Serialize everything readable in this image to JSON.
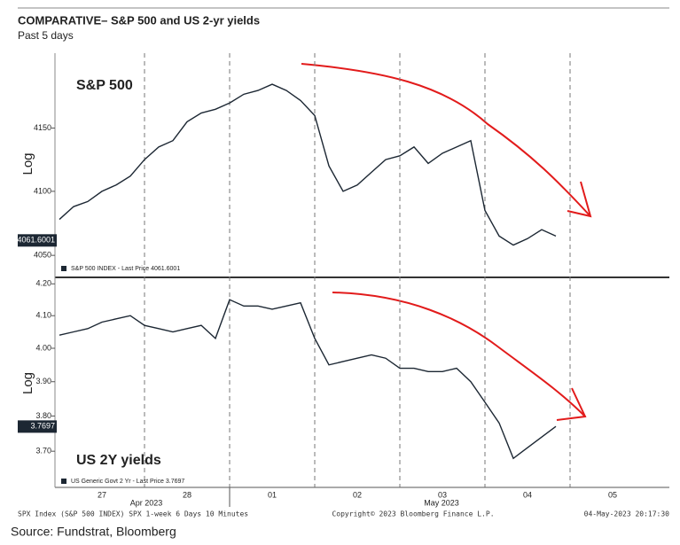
{
  "header": {
    "title": "COMPARATIVE– S&P 500 and US 2-yr yields",
    "subtitle": "Past 5 days"
  },
  "x_axis": {
    "categories": [
      null,
      null,
      null,
      "27",
      null,
      null,
      null,
      null,
      null,
      "28",
      null,
      null,
      null,
      null,
      null,
      "01",
      null,
      null,
      null,
      null,
      null,
      "02",
      null,
      null,
      null,
      null,
      null,
      "03",
      null,
      null,
      null,
      null,
      null,
      "04",
      null,
      null,
      null,
      null,
      null,
      "05",
      null,
      null
    ],
    "months": [
      "Apr 2023",
      "May 2023"
    ]
  },
  "chart_data": [
    {
      "type": "line",
      "annotation": "S&P 500",
      "axis_label": "Log",
      "log": true,
      "legend": "S&P 500 INDEX - Last Price 4061.6001",
      "last_price": 4061.6001,
      "series": [
        {
          "name": "S&P 500 INDEX",
          "color": "#1c2733",
          "values": [
            4078,
            4088,
            4092,
            4100,
            4105,
            4112,
            4125,
            4135,
            4140,
            4155,
            4162,
            4165,
            4170,
            4177,
            4180,
            4185,
            4180,
            4172,
            4160,
            4120,
            4100,
            4105,
            4115,
            4125,
            4128,
            4135,
            4122,
            4130,
            4135,
            4140,
            4085,
            4065,
            4058,
            4063,
            4070,
            4065,
            null,
            null,
            null,
            null,
            null,
            null
          ]
        }
      ],
      "ylim": [
        4035,
        4210
      ],
      "yticks": [
        4050,
        4100,
        4150
      ]
    },
    {
      "type": "line",
      "annotation": "US 2Y yields",
      "axis_label": "Log",
      "log": true,
      "legend": "US Generic Govt 2 Yr - Last Price 3.7697",
      "last_price": 3.7697,
      "series": [
        {
          "name": "US Generic Govt 2 Yr",
          "color": "#1c2733",
          "values": [
            4.04,
            4.05,
            4.06,
            4.08,
            4.09,
            4.1,
            4.07,
            4.06,
            4.05,
            4.06,
            4.07,
            4.03,
            4.15,
            4.13,
            4.13,
            4.12,
            4.13,
            4.14,
            4.03,
            3.95,
            3.96,
            3.97,
            3.98,
            3.97,
            3.94,
            3.94,
            3.93,
            3.93,
            3.94,
            3.9,
            3.84,
            3.78,
            3.68,
            3.71,
            3.74,
            3.77,
            null,
            null,
            null,
            null,
            null,
            null
          ]
        }
      ],
      "ylim": [
        3.6,
        4.215
      ],
      "yticks": [
        {
          "value": 3.7,
          "label": "3.70"
        },
        {
          "value": 3.8,
          "label": "3.80"
        },
        {
          "value": 3.9,
          "label": "3.90"
        },
        {
          "value": 4.0,
          "label": "4.00"
        },
        {
          "value": 4.1,
          "label": "4.10"
        },
        {
          "value": 4.2,
          "label": "4.20"
        }
      ]
    }
  ],
  "footer": {
    "left": "SPX Index (S&P 500 INDEX) SPX 1-week 6 Days 10 Minutes",
    "center": "Copyright© 2023 Bloomberg Finance L.P.",
    "right": "04-May-2023 20:17:30",
    "source": "Source: Fundstrat, Bloomberg"
  }
}
